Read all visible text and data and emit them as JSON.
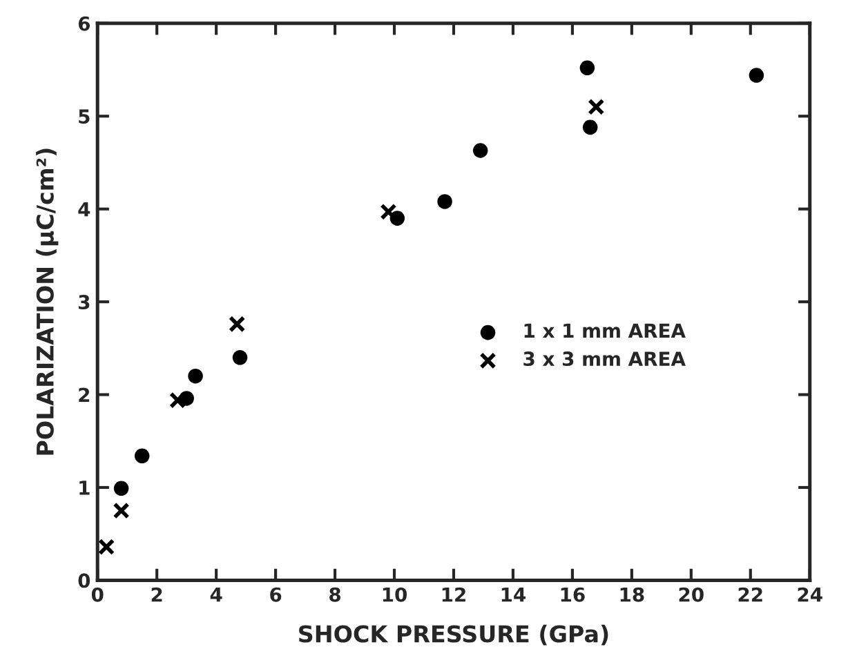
{
  "chart_data": {
    "type": "scatter",
    "xlabel": "SHOCK PRESSURE (GPa)",
    "ylabel": "POLARIZATION (μC/cm²)",
    "xlim": [
      0,
      24
    ],
    "xticks": [
      0,
      2,
      4,
      6,
      8,
      10,
      12,
      14,
      16,
      18,
      20,
      22,
      24
    ],
    "ylim": [
      0,
      6
    ],
    "yticks": [
      0,
      1,
      2,
      3,
      4,
      5,
      6
    ],
    "grid": false,
    "legend": "right",
    "series": [
      {
        "name": "1 x 1 mm AREA",
        "color": "#000000",
        "marker": "circle",
        "x": [
          0.8,
          1.5,
          3.0,
          3.3,
          4.8,
          10.1,
          11.7,
          12.9,
          16.5,
          16.6,
          22.2
        ],
        "values": [
          0.99,
          1.34,
          1.96,
          2.2,
          2.4,
          3.9,
          4.08,
          4.63,
          5.52,
          4.88,
          5.44
        ]
      },
      {
        "name": "3 x 3 mm AREA",
        "color": "#000000",
        "marker": "cross",
        "x": [
          0.3,
          0.8,
          2.7,
          4.7,
          9.8,
          16.8
        ],
        "values": [
          0.36,
          0.75,
          1.94,
          2.76,
          3.97,
          5.1
        ]
      }
    ]
  }
}
